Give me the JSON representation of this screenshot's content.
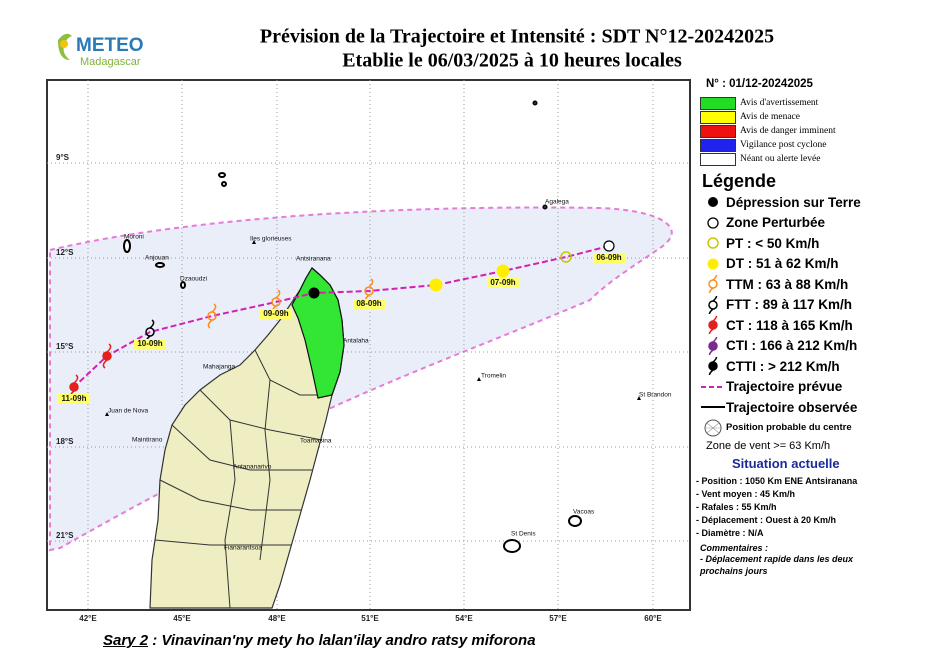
{
  "logo": {
    "name": "METEO",
    "country": "Madagascar"
  },
  "header": {
    "title": "Prévision de la Trajectoire et Intensité : SDT N°12-20242025",
    "subtitle": "Etablie le 06/03/2025 à 10 heures locales"
  },
  "bulletin_number": "N° : 01/12-20242025",
  "alert_levels": [
    "Avis d'avertissement",
    "Avis de menace",
    "Avis de danger imminent",
    "Vigilance post cyclone",
    "Néant ou alerte levée"
  ],
  "legend": {
    "title": "Légende",
    "items": [
      "Dépression sur Terre",
      "Zone Perturbée",
      "PT : < 50 Km/h",
      "DT : 51 à 62 Km/h",
      "TTM : 63 à 88 Km/h",
      "FTT : 89 à 117 Km/h",
      "CT : 118 à 165 Km/h",
      "CTI : 166 à 212 Km/h",
      "CTTI : > 212 Km/h",
      "Trajectoire prévue",
      "Trajectoire observée"
    ],
    "probable_position": "Position probable du centre",
    "wind_zone": "Zone de vent >= 63 Km/h"
  },
  "current_situation": {
    "title": "Situation actuelle",
    "items": [
      "- Position : 1050 Km ENE Antsiranana",
      "- Vent moyen : 45 Km/h",
      "- Rafales : 55 Km/h",
      "- Déplacement : Ouest à 20 Km/h",
      "- Diamètre : N/A"
    ]
  },
  "comments": {
    "title": "Commentaires :",
    "text": "- Déplacement rapide dans les deux prochains jours"
  },
  "map": {
    "lon_labels": [
      "42°E",
      "45°E",
      "48°E",
      "51°E",
      "54°E",
      "57°E",
      "60°E"
    ],
    "lat_labels": [
      "9°S",
      "12°S",
      "15°S",
      "18°S",
      "21°S"
    ],
    "places": [
      "Moroni",
      "Anjouan",
      "Dzaoudzi",
      "Iles glorieuses",
      "Antsiranana",
      "Antalaha",
      "Mahajanga",
      "Juan de Nova",
      "Maintirano",
      "Toamasina",
      "Antananarivo",
      "Fianarantsoa",
      "Tromelin",
      "St Brandon",
      "Agalega",
      "Vacoas",
      "St Denis"
    ],
    "track_labels": [
      "06-09h",
      "07-09h",
      "08-09h",
      "09-09h",
      "10-09h",
      "11-09h"
    ]
  },
  "caption": {
    "label": "Sary 2",
    "text": ": Vinavinan'ny mety ho lalan'ilay andro ratsy miforona"
  }
}
